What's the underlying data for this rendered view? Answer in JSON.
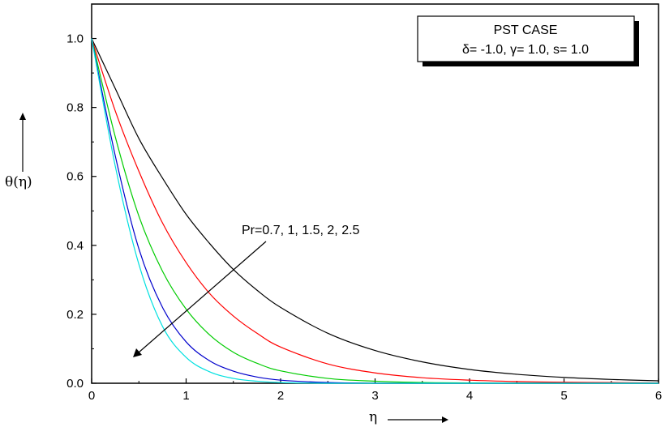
{
  "chart_data": {
    "type": "line",
    "title": "",
    "xlabel": "η",
    "ylabel": "θ(η)",
    "xlim": [
      0,
      6
    ],
    "ylim": [
      0,
      1.1
    ],
    "xticks": [
      0,
      1,
      2,
      3,
      4,
      5,
      6
    ],
    "yticks": [
      0.0,
      0.2,
      0.4,
      0.6,
      0.8,
      1.0
    ],
    "xtick_labels": [
      "0",
      "1",
      "2",
      "3",
      "4",
      "5",
      "6"
    ],
    "ytick_labels": [
      "0.0",
      "0.2",
      "0.4",
      "0.6",
      "0.8",
      "1.0"
    ],
    "grid": false,
    "legend": {
      "placement": "top-right",
      "title": "PST CASE",
      "params": "δ= -1.0, γ= 1.0, s= 1.0"
    },
    "annotation": "Pr=0.7, 1, 1.5, 2, 2.5",
    "x": [
      0,
      0.25,
      0.5,
      0.75,
      1.0,
      1.25,
      1.5,
      1.75,
      2.0,
      2.5,
      3.0,
      3.5,
      4.0,
      4.5,
      5.0,
      5.5,
      6.0
    ],
    "series": [
      {
        "color": "#000000",
        "values": [
          1.0,
          0.855,
          0.71,
          0.595,
          0.49,
          0.405,
          0.33,
          0.27,
          0.22,
          0.145,
          0.095,
          0.062,
          0.04,
          0.026,
          0.017,
          0.011,
          0.007
        ]
      },
      {
        "color": "#ff0000",
        "values": [
          1.0,
          0.79,
          0.615,
          0.465,
          0.35,
          0.26,
          0.195,
          0.145,
          0.105,
          0.056,
          0.03,
          0.016,
          0.009,
          0.005,
          0.003,
          0.002,
          0.001
        ]
      },
      {
        "color": "#00cc00",
        "values": [
          1.0,
          0.715,
          0.485,
          0.325,
          0.215,
          0.14,
          0.09,
          0.058,
          0.036,
          0.014,
          0.006,
          0.002,
          0.001,
          0.0,
          0.0,
          0.0,
          0.0
        ]
      },
      {
        "color": "#0000cc",
        "values": [
          1.0,
          0.66,
          0.39,
          0.22,
          0.12,
          0.065,
          0.035,
          0.018,
          0.009,
          0.002,
          0.0,
          0.0,
          0.0,
          0.0,
          0.0,
          0.0,
          0.0
        ]
      },
      {
        "color": "#00e0e0",
        "values": [
          1.0,
          0.63,
          0.345,
          0.165,
          0.075,
          0.033,
          0.014,
          0.006,
          0.002,
          0.0,
          0.0,
          0.0,
          0.0,
          0.0,
          0.0,
          0.0,
          0.0
        ]
      }
    ]
  }
}
